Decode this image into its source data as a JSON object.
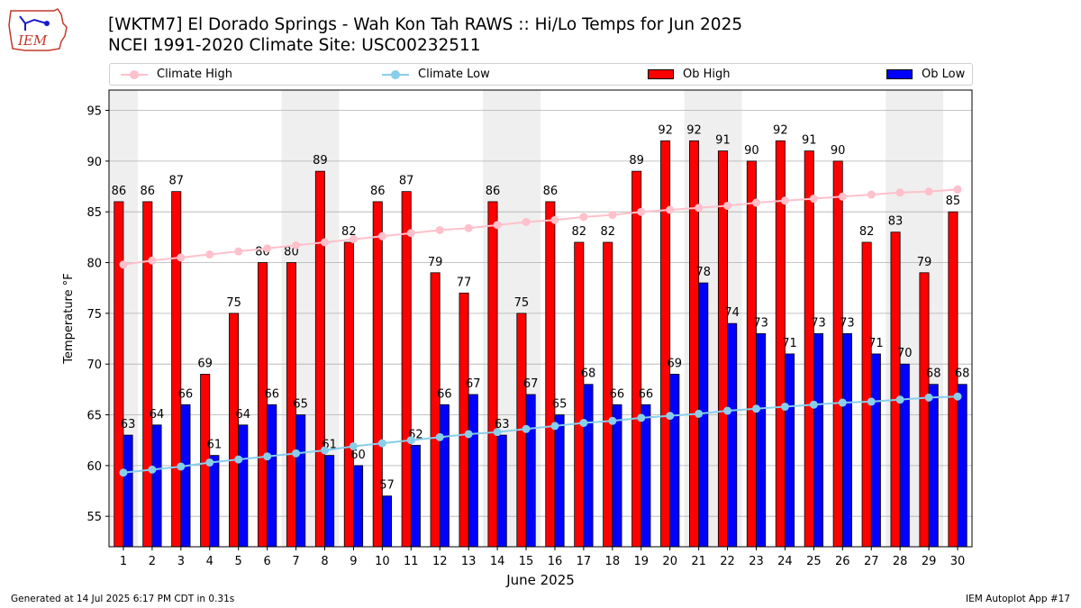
{
  "logo": {
    "text": "IEM"
  },
  "header": {
    "title_line1": "[WKTM7] El Dorado Springs - Wah Kon Tah RAWS :: Hi/Lo Temps for Jun 2025",
    "title_line2": "NCEI 1991-2020 Climate Site: USC00232511"
  },
  "footer": {
    "generated": "Generated at 14 Jul 2025 6:17 PM CDT in 0.31s",
    "app": "IEM Autoplot App #17"
  },
  "colors": {
    "ob_high": "#ff0000",
    "ob_low": "#0000ff",
    "climate_high": "#ffc0cb",
    "climate_low": "#87ceeb",
    "weekend_shade": "#efefef",
    "grid": "#b0b0b0"
  },
  "chart_data": {
    "type": "bar",
    "title": "[WKTM7] El Dorado Springs - Wah Kon Tah RAWS :: Hi/Lo Temps for Jun 2025",
    "subtitle": "NCEI 1991-2020 Climate Site: USC00232511",
    "xlabel": "June 2025",
    "ylabel": "Temperature °F",
    "ylim": [
      52,
      97
    ],
    "yticks": [
      55,
      60,
      65,
      70,
      75,
      80,
      85,
      90,
      95
    ],
    "grid": true,
    "legend_position": "top",
    "categories": [
      "1",
      "2",
      "3",
      "4",
      "5",
      "6",
      "7",
      "8",
      "9",
      "10",
      "11",
      "12",
      "13",
      "14",
      "15",
      "16",
      "17",
      "18",
      "19",
      "20",
      "21",
      "22",
      "23",
      "24",
      "25",
      "26",
      "27",
      "28",
      "29",
      "30"
    ],
    "weekend_days": [
      1,
      7,
      8,
      14,
      15,
      21,
      22,
      28,
      29
    ],
    "series": [
      {
        "name": "Ob High",
        "kind": "bar",
        "values": [
          86,
          86,
          87,
          69,
          75,
          80,
          80,
          89,
          82,
          86,
          87,
          79,
          77,
          86,
          75,
          86,
          82,
          82,
          89,
          92,
          92,
          91,
          90,
          92,
          91,
          90,
          82,
          83,
          79,
          85
        ]
      },
      {
        "name": "Ob Low",
        "kind": "bar",
        "values": [
          63,
          64,
          66,
          61,
          64,
          66,
          65,
          61,
          60,
          57,
          62,
          66,
          67,
          63,
          67,
          65,
          68,
          66,
          66,
          69,
          78,
          74,
          73,
          71,
          73,
          73,
          71,
          70,
          68,
          68
        ]
      },
      {
        "name": "Climate High",
        "kind": "line",
        "values": [
          79.8,
          80.2,
          80.5,
          80.8,
          81.1,
          81.4,
          81.7,
          82.0,
          82.3,
          82.6,
          82.9,
          83.2,
          83.4,
          83.7,
          84.0,
          84.2,
          84.5,
          84.7,
          85.0,
          85.2,
          85.4,
          85.6,
          85.9,
          86.1,
          86.3,
          86.5,
          86.7,
          86.9,
          87.0,
          87.2
        ]
      },
      {
        "name": "Climate Low",
        "kind": "line",
        "values": [
          59.3,
          59.6,
          59.9,
          60.3,
          60.6,
          60.9,
          61.2,
          61.5,
          61.9,
          62.2,
          62.5,
          62.8,
          63.1,
          63.3,
          63.6,
          63.9,
          64.2,
          64.4,
          64.7,
          64.9,
          65.1,
          65.4,
          65.6,
          65.8,
          66.0,
          66.2,
          66.3,
          66.5,
          66.7,
          66.8
        ]
      }
    ]
  }
}
